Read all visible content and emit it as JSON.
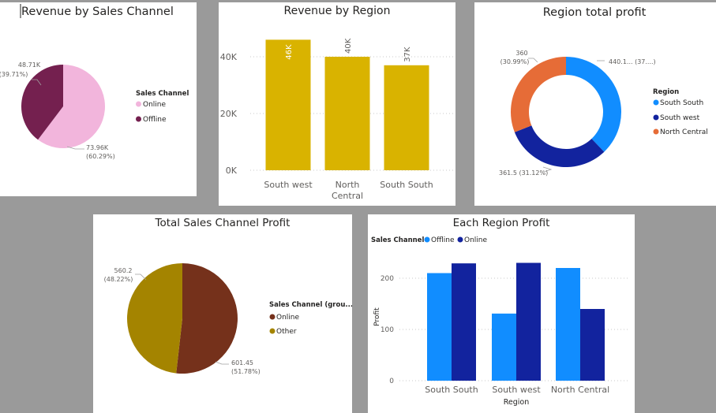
{
  "colors": {
    "online_pink": "#f2b5dc",
    "offline_plum": "#74204f",
    "bar_gold": "#d9b300",
    "south_south": "#118dff",
    "south_west": "#12239e",
    "north_central": "#e66c37",
    "online_brown": "#75311b",
    "other_olive": "#a48400",
    "offline_blue": "#118dff",
    "online_navy": "#12239e"
  },
  "chart_data": [
    {
      "type": "pie",
      "title": "Revenue by Sales Channel",
      "legend_title": "Sales Channel",
      "legend_position": "right",
      "slices": [
        {
          "name": "Online",
          "value": 73.96,
          "label": "73.96K",
          "pct": "(60.29%)"
        },
        {
          "name": "Offline",
          "value": 48.71,
          "label": "48.71K",
          "pct": "(39.71%)"
        }
      ]
    },
    {
      "type": "bar",
      "title": "Revenue by Region",
      "categories": [
        "South west",
        "North Central",
        "South South"
      ],
      "values": [
        46,
        40,
        37
      ],
      "data_labels": [
        "46K",
        "40K",
        "37K"
      ],
      "yticks": [
        "0K",
        "20K",
        "40K"
      ],
      "ylim": [
        0,
        50
      ],
      "grid": true
    },
    {
      "type": "pie",
      "title": "Region total profit",
      "legend_title": "Region",
      "legend_position": "right",
      "slices": [
        {
          "name": "South South",
          "value": 440.1,
          "label": "440.1... (37....)"
        },
        {
          "name": "South west",
          "value": 361.5,
          "label": "361.5 (31.12%)"
        },
        {
          "name": "North Central",
          "value": 360,
          "label": "360",
          "pct": "(30.99%)"
        }
      ]
    },
    {
      "type": "pie",
      "title": "Total Sales Channel Profit",
      "legend_title": "Sales Channel (grou...",
      "legend_position": "right",
      "slices": [
        {
          "name": "Online",
          "value": 601.45,
          "label": "601.45",
          "pct": "(51.78%)"
        },
        {
          "name": "Other",
          "value": 560.2,
          "label": "560.2",
          "pct": "(48.22%)"
        }
      ]
    },
    {
      "type": "bar",
      "title": "Each Region Profit",
      "legend_title": "Sales Channel",
      "legend_position": "top-left",
      "categories": [
        "South South",
        "South west",
        "North Central"
      ],
      "series": [
        {
          "name": "Offline",
          "values": [
            210,
            131,
            220
          ]
        },
        {
          "name": "Online",
          "values": [
            229,
            230,
            140
          ]
        }
      ],
      "xlabel": "Region",
      "ylabel": "Profit",
      "yticks": [
        "0",
        "100",
        "200"
      ],
      "ylim": [
        0,
        240
      ],
      "grid": true
    }
  ]
}
